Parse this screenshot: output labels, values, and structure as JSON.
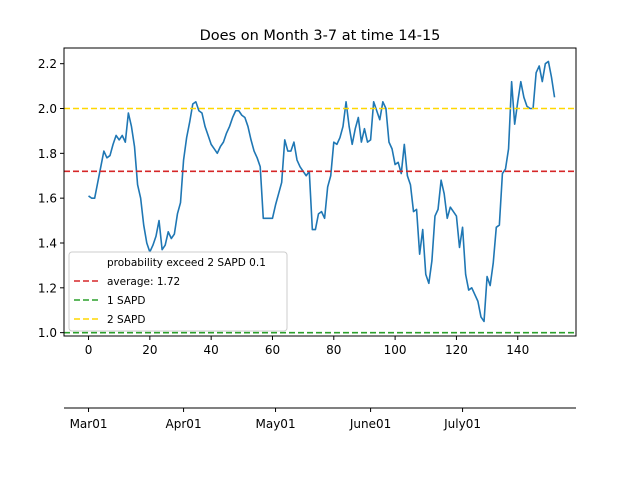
{
  "chart_data": {
    "type": "line",
    "title": "Does on Month 3-7 at time 14-15",
    "xlim": [
      -8,
      159
    ],
    "ylim": [
      0.985,
      2.27
    ],
    "x_ticks": [
      0,
      20,
      40,
      60,
      80,
      100,
      120,
      140
    ],
    "y_ticks": [
      1.0,
      1.2,
      1.4,
      1.6,
      1.8,
      2.0,
      2.2
    ],
    "y_tick_labels": [
      "1.0",
      "1.2",
      "1.4",
      "1.6",
      "1.8",
      "2.0",
      "2.2"
    ],
    "grid": false,
    "legend_position": "lower-left",
    "series": [
      {
        "color": "#1f77b4",
        "x": [
          0,
          1,
          2,
          3,
          4,
          5,
          6,
          7,
          8,
          9,
          10,
          11,
          12,
          13,
          14,
          15,
          16,
          17,
          18,
          19,
          20,
          21,
          22,
          23,
          24,
          25,
          26,
          27,
          28,
          29,
          30,
          31,
          32,
          33,
          34,
          35,
          36,
          37,
          38,
          39,
          40,
          41,
          42,
          43,
          44,
          45,
          46,
          47,
          48,
          49,
          50,
          51,
          52,
          53,
          54,
          55,
          56,
          57,
          58,
          59,
          60,
          61,
          62,
          63,
          64,
          65,
          66,
          67,
          68,
          69,
          70,
          71,
          72,
          73,
          74,
          75,
          76,
          77,
          78,
          79,
          80,
          81,
          82,
          83,
          84,
          85,
          86,
          87,
          88,
          89,
          90,
          91,
          92,
          93,
          94,
          95,
          96,
          97,
          98,
          99,
          100,
          101,
          102,
          103,
          104,
          105,
          106,
          107,
          108,
          109,
          110,
          111,
          112,
          113,
          114,
          115,
          116,
          117,
          118,
          119,
          120,
          121,
          122,
          123,
          124,
          125,
          126,
          127,
          128,
          129,
          130,
          131,
          132,
          133,
          134,
          135,
          136,
          137,
          138,
          139,
          140,
          141,
          142,
          143,
          144,
          145,
          146,
          147,
          148,
          149,
          150,
          151,
          152
        ],
        "y": [
          1.61,
          1.6,
          1.6,
          1.67,
          1.74,
          1.81,
          1.78,
          1.79,
          1.84,
          1.88,
          1.86,
          1.88,
          1.85,
          1.98,
          1.92,
          1.83,
          1.66,
          1.6,
          1.48,
          1.4,
          1.36,
          1.39,
          1.43,
          1.5,
          1.37,
          1.39,
          1.45,
          1.42,
          1.44,
          1.53,
          1.58,
          1.77,
          1.87,
          1.94,
          2.02,
          2.03,
          1.99,
          1.98,
          1.92,
          1.88,
          1.84,
          1.82,
          1.8,
          1.83,
          1.85,
          1.89,
          1.92,
          1.96,
          1.99,
          1.99,
          1.97,
          1.96,
          1.92,
          1.86,
          1.81,
          1.78,
          1.74,
          1.51,
          1.51,
          1.51,
          1.51,
          1.57,
          1.62,
          1.67,
          1.86,
          1.81,
          1.81,
          1.85,
          1.77,
          1.74,
          1.72,
          1.7,
          1.72,
          1.46,
          1.46,
          1.53,
          1.54,
          1.51,
          1.65,
          1.7,
          1.85,
          1.84,
          1.87,
          1.92,
          2.03,
          1.92,
          1.84,
          1.91,
          1.96,
          1.85,
          1.91,
          1.85,
          1.86,
          2.03,
          1.99,
          1.95,
          2.03,
          2.0,
          1.85,
          1.82,
          1.75,
          1.76,
          1.71,
          1.84,
          1.7,
          1.66,
          1.54,
          1.55,
          1.35,
          1.46,
          1.26,
          1.22,
          1.32,
          1.52,
          1.55,
          1.68,
          1.62,
          1.51,
          1.56,
          1.54,
          1.52,
          1.38,
          1.47,
          1.26,
          1.19,
          1.2,
          1.17,
          1.14,
          1.07,
          1.05,
          1.25,
          1.21,
          1.31,
          1.47,
          1.48,
          1.71,
          1.73,
          1.82,
          2.12,
          1.93,
          2.03,
          2.12,
          2.05,
          2.01,
          2.0,
          2.0,
          2.16,
          2.19,
          2.12,
          2.2,
          2.21,
          2.14,
          2.05
        ]
      }
    ],
    "hlines": [
      {
        "y": 1.72,
        "color": "#d62728",
        "label": "average: 1.72"
      },
      {
        "y": 1.0,
        "color": "#2ca02c",
        "label": "1 SAPD"
      },
      {
        "y": 2.0,
        "color": "#ffd700",
        "label": "2 SAPD"
      }
    ],
    "legend": [
      {
        "label": "probability exceed 2 SAPD 0.1",
        "color": ""
      },
      {
        "label": "average: 1.72",
        "color": "#d62728"
      },
      {
        "label": "1 SAPD",
        "color": "#2ca02c"
      },
      {
        "label": "2 SAPD",
        "color": "#ffd700"
      }
    ],
    "secondary_axis": {
      "labels": [
        "Mar01",
        "Apr01",
        "May01",
        "June01",
        "July01"
      ],
      "positions": [
        0,
        31,
        61,
        92,
        122
      ]
    }
  }
}
